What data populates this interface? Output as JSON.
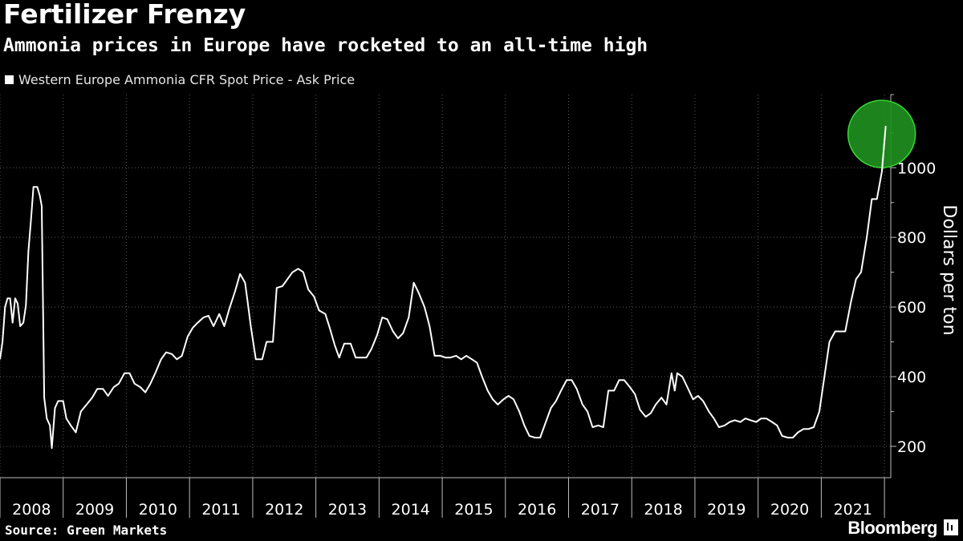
{
  "header": {
    "title": "Fertilizer Frenzy",
    "subtitle": "Ammonia prices in Europe have rocketed to an all-time high"
  },
  "footer": {
    "source": "Source: Green Markets",
    "brand": "Bloomberg"
  },
  "colors": {
    "background": "#000000",
    "line": "#ffffff",
    "grid": "#5a5a5a",
    "highlight": "#1f8f1f",
    "highlight_edge": "#37d637"
  },
  "chart_data": {
    "type": "line",
    "title": "Fertilizer Frenzy",
    "subtitle": "Ammonia prices in Europe have rocketed to an all-time high",
    "xlabel": "",
    "ylabel": "Dollars per ton",
    "xlim": [
      2008.0,
      2022.1
    ],
    "ylim": [
      110,
      1210
    ],
    "yticks": [
      200,
      400,
      600,
      800,
      1000
    ],
    "xtick_labels": [
      "2008",
      "2009",
      "2010",
      "2011",
      "2012",
      "2013",
      "2014",
      "2015",
      "2016",
      "2017",
      "2018",
      "2019",
      "2020",
      "2021"
    ],
    "grid": true,
    "legend_position": "top-left",
    "annotation": "green circle highlighting latest all-time high",
    "series": [
      {
        "name": "Western Europe Ammonia CFR Spot Price - Ask Price",
        "points": [
          [
            2008.0,
            450
          ],
          [
            2008.04,
            500
          ],
          [
            2008.08,
            600
          ],
          [
            2008.12,
            625
          ],
          [
            2008.16,
            625
          ],
          [
            2008.2,
            555
          ],
          [
            2008.24,
            625
          ],
          [
            2008.28,
            610
          ],
          [
            2008.32,
            545
          ],
          [
            2008.37,
            555
          ],
          [
            2008.41,
            605
          ],
          [
            2008.45,
            760
          ],
          [
            2008.49,
            850
          ],
          [
            2008.53,
            945
          ],
          [
            2008.59,
            945
          ],
          [
            2008.63,
            920
          ],
          [
            2008.66,
            890
          ],
          [
            2008.7,
            340
          ],
          [
            2008.74,
            280
          ],
          [
            2008.79,
            260
          ],
          [
            2008.82,
            195
          ],
          [
            2008.87,
            310
          ],
          [
            2008.92,
            330
          ],
          [
            2009.0,
            330
          ],
          [
            2009.05,
            280
          ],
          [
            2009.12,
            260
          ],
          [
            2009.2,
            240
          ],
          [
            2009.28,
            300
          ],
          [
            2009.37,
            320
          ],
          [
            2009.46,
            340
          ],
          [
            2009.54,
            365
          ],
          [
            2009.63,
            365
          ],
          [
            2009.71,
            345
          ],
          [
            2009.8,
            370
          ],
          [
            2009.88,
            380
          ],
          [
            2009.97,
            410
          ],
          [
            2010.05,
            410
          ],
          [
            2010.13,
            380
          ],
          [
            2010.22,
            370
          ],
          [
            2010.3,
            355
          ],
          [
            2010.38,
            380
          ],
          [
            2010.47,
            415
          ],
          [
            2010.55,
            450
          ],
          [
            2010.63,
            470
          ],
          [
            2010.72,
            465
          ],
          [
            2010.8,
            450
          ],
          [
            2010.88,
            460
          ],
          [
            2010.97,
            515
          ],
          [
            2011.05,
            540
          ],
          [
            2011.13,
            555
          ],
          [
            2011.22,
            570
          ],
          [
            2011.3,
            575
          ],
          [
            2011.38,
            545
          ],
          [
            2011.47,
            580
          ],
          [
            2011.55,
            545
          ],
          [
            2011.63,
            595
          ],
          [
            2011.72,
            645
          ],
          [
            2011.8,
            695
          ],
          [
            2011.88,
            670
          ],
          [
            2011.92,
            615
          ],
          [
            2011.97,
            545
          ],
          [
            2012.05,
            450
          ],
          [
            2012.15,
            450
          ],
          [
            2012.22,
            500
          ],
          [
            2012.32,
            500
          ],
          [
            2012.38,
            655
          ],
          [
            2012.47,
            660
          ],
          [
            2012.55,
            680
          ],
          [
            2012.63,
            700
          ],
          [
            2012.72,
            710
          ],
          [
            2012.8,
            700
          ],
          [
            2012.88,
            650
          ],
          [
            2012.97,
            630
          ],
          [
            2013.05,
            590
          ],
          [
            2013.15,
            580
          ],
          [
            2013.22,
            540
          ],
          [
            2013.3,
            490
          ],
          [
            2013.37,
            455
          ],
          [
            2013.45,
            495
          ],
          [
            2013.55,
            495
          ],
          [
            2013.63,
            455
          ],
          [
            2013.72,
            455
          ],
          [
            2013.8,
            455
          ],
          [
            2013.88,
            480
          ],
          [
            2013.97,
            520
          ],
          [
            2014.05,
            570
          ],
          [
            2014.13,
            565
          ],
          [
            2014.22,
            530
          ],
          [
            2014.3,
            510
          ],
          [
            2014.38,
            525
          ],
          [
            2014.47,
            570
          ],
          [
            2014.55,
            670
          ],
          [
            2014.63,
            640
          ],
          [
            2014.72,
            600
          ],
          [
            2014.8,
            545
          ],
          [
            2014.88,
            460
          ],
          [
            2014.97,
            460
          ],
          [
            2015.05,
            455
          ],
          [
            2015.13,
            455
          ],
          [
            2015.22,
            460
          ],
          [
            2015.3,
            450
          ],
          [
            2015.38,
            460
          ],
          [
            2015.47,
            450
          ],
          [
            2015.55,
            440
          ],
          [
            2015.63,
            400
          ],
          [
            2015.72,
            360
          ],
          [
            2015.8,
            335
          ],
          [
            2015.88,
            320
          ],
          [
            2015.97,
            335
          ],
          [
            2016.05,
            345
          ],
          [
            2016.13,
            335
          ],
          [
            2016.22,
            300
          ],
          [
            2016.3,
            260
          ],
          [
            2016.38,
            230
          ],
          [
            2016.47,
            225
          ],
          [
            2016.55,
            225
          ],
          [
            2016.63,
            265
          ],
          [
            2016.72,
            310
          ],
          [
            2016.8,
            330
          ],
          [
            2016.88,
            360
          ],
          [
            2016.97,
            390
          ],
          [
            2017.05,
            390
          ],
          [
            2017.13,
            365
          ],
          [
            2017.22,
            320
          ],
          [
            2017.3,
            300
          ],
          [
            2017.38,
            255
          ],
          [
            2017.47,
            260
          ],
          [
            2017.55,
            255
          ],
          [
            2017.63,
            360
          ],
          [
            2017.72,
            360
          ],
          [
            2017.8,
            390
          ],
          [
            2017.88,
            390
          ],
          [
            2017.97,
            370
          ],
          [
            2018.05,
            350
          ],
          [
            2018.13,
            305
          ],
          [
            2018.22,
            285
          ],
          [
            2018.3,
            295
          ],
          [
            2018.38,
            320
          ],
          [
            2018.47,
            340
          ],
          [
            2018.55,
            320
          ],
          [
            2018.63,
            410
          ],
          [
            2018.68,
            360
          ],
          [
            2018.72,
            410
          ],
          [
            2018.8,
            400
          ],
          [
            2018.88,
            370
          ],
          [
            2018.97,
            335
          ],
          [
            2019.05,
            345
          ],
          [
            2019.13,
            330
          ],
          [
            2019.22,
            300
          ],
          [
            2019.3,
            280
          ],
          [
            2019.38,
            255
          ],
          [
            2019.47,
            260
          ],
          [
            2019.55,
            270
          ],
          [
            2019.63,
            275
          ],
          [
            2019.72,
            270
          ],
          [
            2019.8,
            280
          ],
          [
            2019.88,
            275
          ],
          [
            2019.97,
            270
          ],
          [
            2020.05,
            280
          ],
          [
            2020.13,
            280
          ],
          [
            2020.22,
            270
          ],
          [
            2020.3,
            260
          ],
          [
            2020.38,
            230
          ],
          [
            2020.47,
            225
          ],
          [
            2020.55,
            225
          ],
          [
            2020.63,
            240
          ],
          [
            2020.72,
            250
          ],
          [
            2020.8,
            250
          ],
          [
            2020.88,
            255
          ],
          [
            2020.97,
            300
          ],
          [
            2021.05,
            400
          ],
          [
            2021.13,
            500
          ],
          [
            2021.22,
            530
          ],
          [
            2021.3,
            530
          ],
          [
            2021.38,
            530
          ],
          [
            2021.47,
            615
          ],
          [
            2021.55,
            680
          ],
          [
            2021.63,
            700
          ],
          [
            2021.72,
            800
          ],
          [
            2021.8,
            910
          ],
          [
            2021.88,
            910
          ],
          [
            2021.96,
            990
          ],
          [
            2022.02,
            1120
          ]
        ]
      }
    ]
  }
}
